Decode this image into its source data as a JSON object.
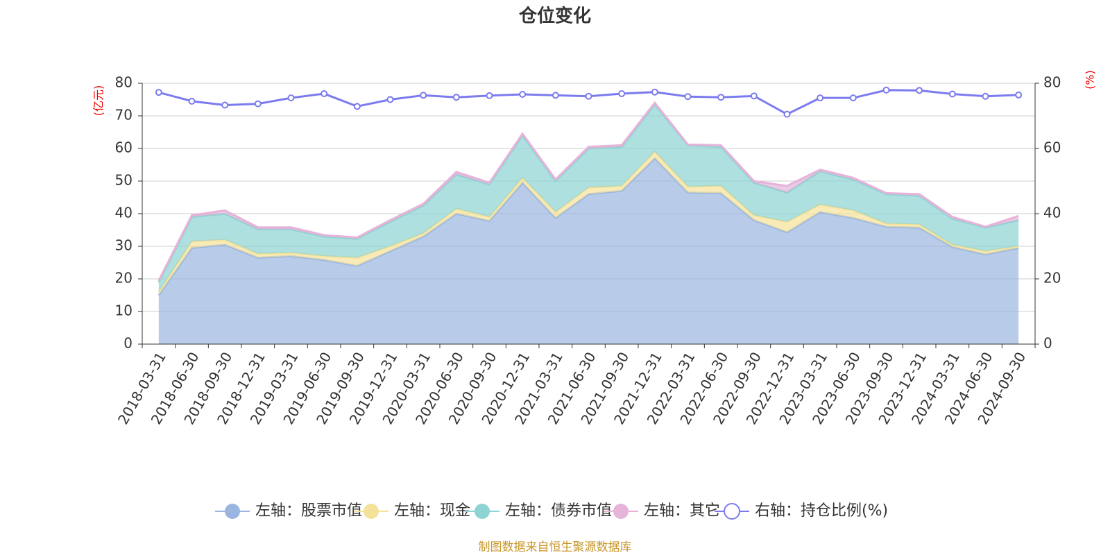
{
  "chart_data": {
    "type": "stacked-area-line",
    "title": "仓位变化",
    "y_label": "(亿元)",
    "y2_label": "(%)",
    "source": "制图数据来自恒生聚源数据库",
    "categories": [
      "2018-03-31",
      "2018-06-30",
      "2018-09-30",
      "2018-12-31",
      "2019-03-31",
      "2019-06-30",
      "2019-09-30",
      "2019-12-31",
      "2020-03-31",
      "2020-06-30",
      "2020-09-30",
      "2020-12-31",
      "2021-03-31",
      "2021-06-30",
      "2021-09-30",
      "2021-12-31",
      "2022-03-31",
      "2022-06-30",
      "2022-09-30",
      "2022-12-31",
      "2023-03-31",
      "2023-06-30",
      "2023-09-30",
      "2023-12-31",
      "2024-03-31",
      "2024-06-30",
      "2024-09-30"
    ],
    "series": [
      {
        "name": "左轴：股票市值",
        "color": "#9ab6e0",
        "values": [
          15,
          29.5,
          30.5,
          26.5,
          27,
          25.8,
          24,
          28.5,
          33,
          40,
          37.8,
          49.5,
          38.7,
          46,
          47,
          57,
          46.5,
          46.3,
          38,
          34.3,
          40.5,
          38.7,
          36,
          35.7,
          29.8,
          27.5,
          29.5
        ]
      },
      {
        "name": "左轴：现金",
        "color": "#f5e29a",
        "values": [
          1,
          2,
          1.5,
          1.2,
          1,
          1.2,
          2.5,
          1.5,
          1,
          1.5,
          1.2,
          1.5,
          1.8,
          2,
          1.5,
          2,
          1.8,
          2.2,
          1.5,
          3.2,
          2.3,
          2.3,
          1,
          1,
          0.7,
          1,
          0.5
        ]
      },
      {
        "name": "左轴：债券市值",
        "color": "#8dd3d3",
        "values": [
          3,
          7.5,
          8,
          7.5,
          7.2,
          6,
          5.8,
          7.5,
          8.5,
          10.5,
          10,
          13,
          9.5,
          12,
          12,
          14.5,
          12.7,
          12,
          10,
          9,
          10.2,
          9.5,
          9,
          8.8,
          8,
          7.2,
          8
        ]
      },
      {
        "name": "左轴：其它",
        "color": "#e6b3d9",
        "values": [
          0.5,
          0.5,
          1,
          0.6,
          0.6,
          0.4,
          0.4,
          0.5,
          0.5,
          0.8,
          0.5,
          0.5,
          0.5,
          0.5,
          0.5,
          0.5,
          0.2,
          0.5,
          0.5,
          2,
          0.5,
          0.5,
          0.3,
          0.5,
          0.5,
          0.3,
          1.3
        ]
      },
      {
        "name": "右轴：持仓比例(%)",
        "color": "#7b7bef",
        "axis": "y2",
        "values": [
          77.2,
          74.5,
          73.3,
          73.7,
          75.5,
          76.8,
          72.9,
          75,
          76.3,
          75.7,
          76.2,
          76.6,
          76.3,
          76,
          76.8,
          77.3,
          75.9,
          75.7,
          76.1,
          70.5,
          75.5,
          75.5,
          77.9,
          77.8,
          76.7,
          76,
          76.4
        ]
      }
    ],
    "ylim": [
      0,
      80
    ],
    "yticks": [
      0,
      10,
      20,
      30,
      40,
      50,
      60,
      70,
      80
    ],
    "y2lim": [
      0,
      80
    ],
    "y2ticks": [
      0,
      20,
      40,
      60,
      80
    ],
    "grid": true
  }
}
